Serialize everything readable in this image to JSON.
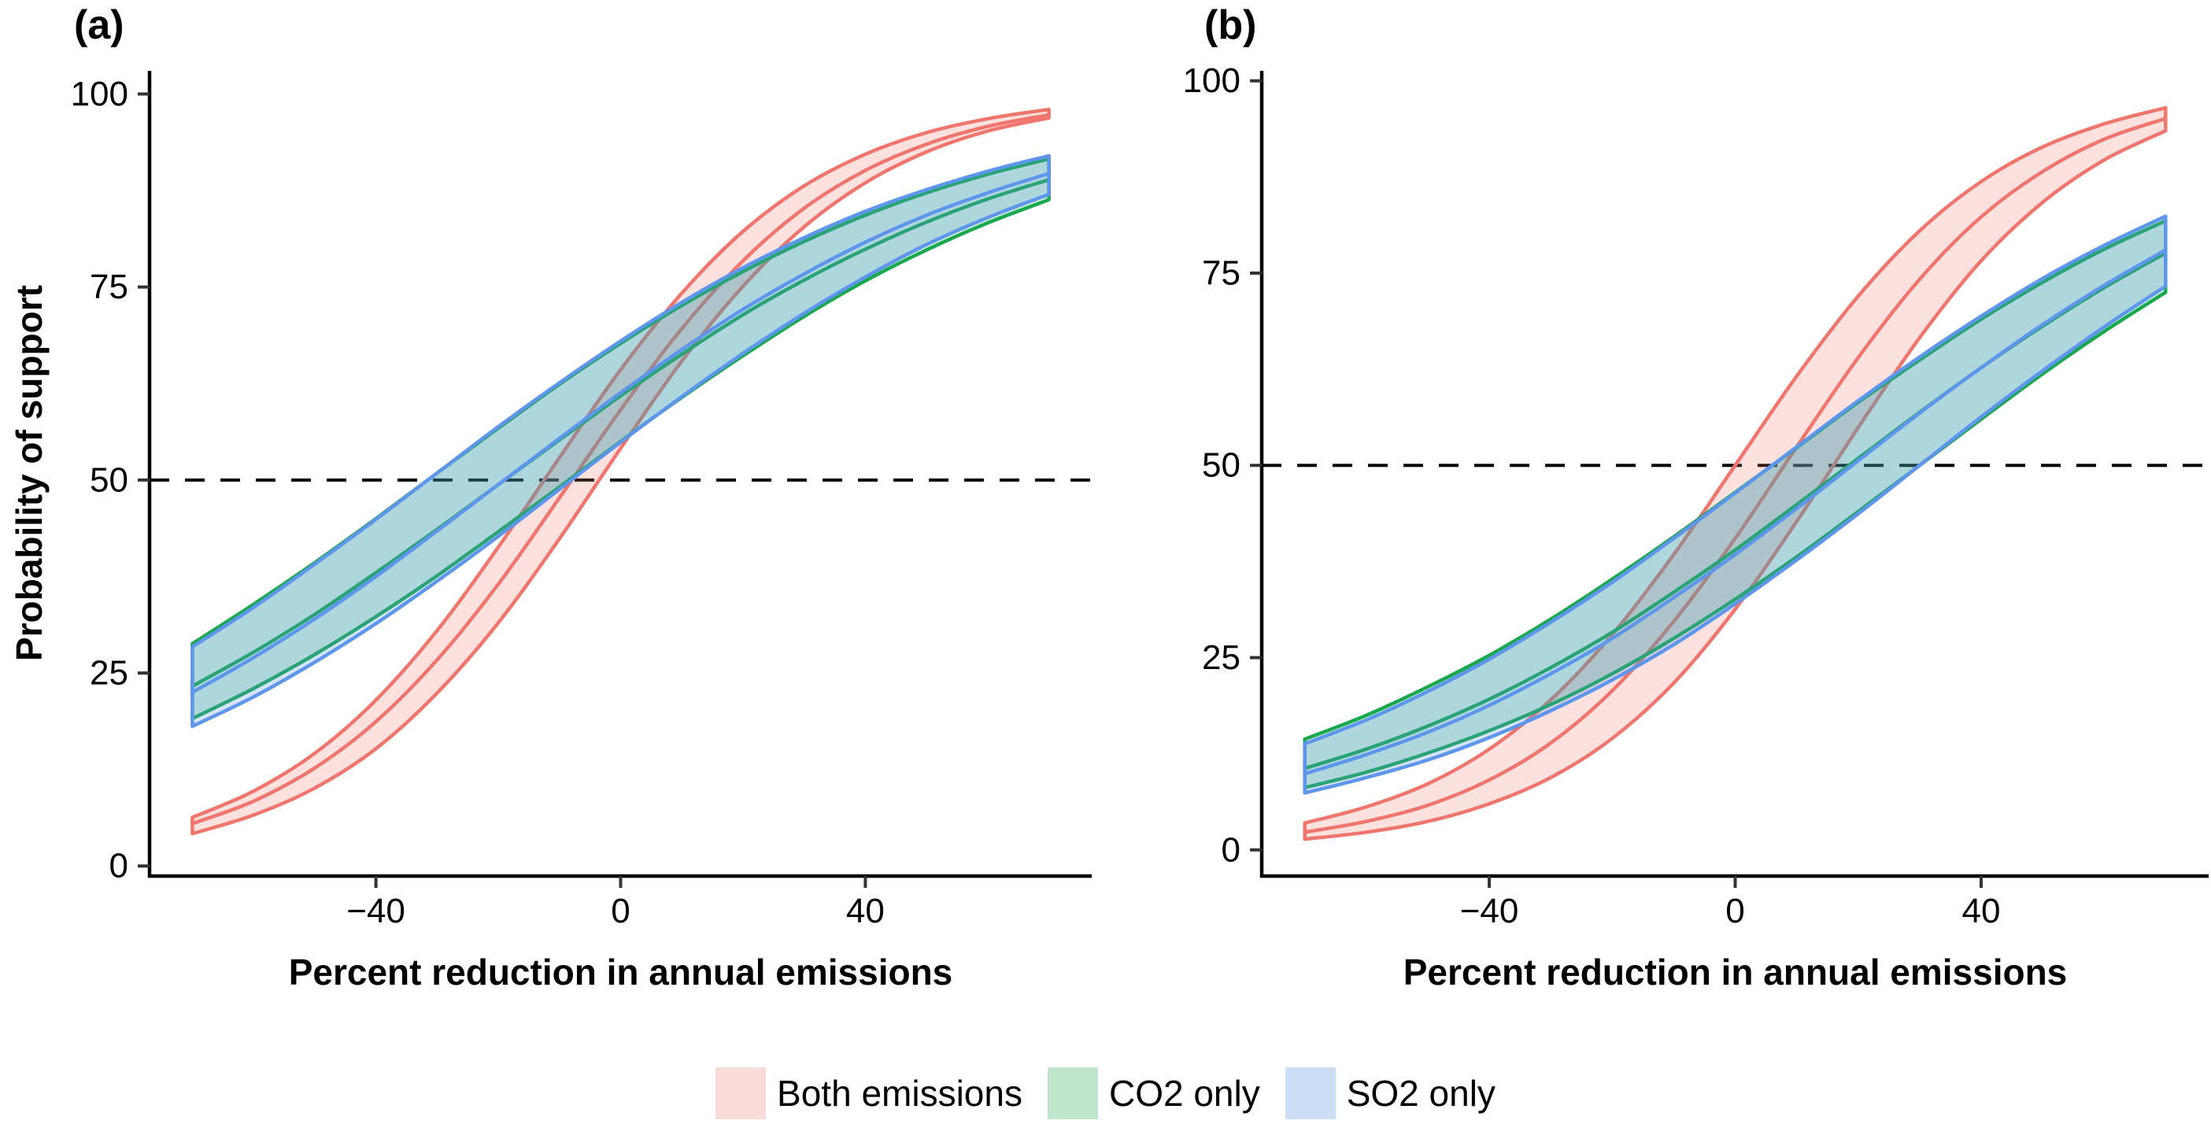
{
  "figure": {
    "ylabel": "Probability of support",
    "legend": [
      {
        "label": "Both emissions",
        "fill": "#F8DBD8"
      },
      {
        "label": "CO2 only",
        "fill": "#C1E6CE"
      },
      {
        "label": "SO2 only",
        "fill": "#CCDDF6"
      }
    ]
  },
  "chart_data": [
    {
      "type": "area",
      "label": "(a)",
      "xlabel": "Percent reduction in annual emissions",
      "ylabel": "Probability of support",
      "xlim": [
        -77,
        77
      ],
      "ylim": [
        -1.3,
        103.0
      ],
      "grid": "off",
      "legend_position": "bottom",
      "reference_line_y": 50,
      "reference_line_style": "dashed",
      "x_ticks": [
        {
          "v": -40,
          "label": "−40"
        },
        {
          "v": 0,
          "label": "0"
        },
        {
          "v": 40,
          "label": "40"
        }
      ],
      "y_ticks": [
        {
          "v": 0,
          "label": "0"
        },
        {
          "v": 25,
          "label": "25"
        },
        {
          "v": 50,
          "label": "50"
        },
        {
          "v": 75,
          "label": "75"
        },
        {
          "v": 100,
          "label": "100"
        }
      ],
      "x": [
        -70,
        -60,
        -50,
        -40,
        -30,
        -20,
        -10,
        0,
        10,
        20,
        30,
        40,
        50,
        60,
        70
      ],
      "series": [
        {
          "name": "Both emissions",
          "color": "#F0756C",
          "fill": "rgba(240,117,108,0.22)",
          "mid": [
            5.5,
            8.4,
            12.7,
            18.7,
            26.7,
            36.5,
            47.7,
            59.1,
            69.6,
            78.4,
            85.2,
            90.1,
            93.5,
            95.8,
            97.3
          ],
          "upper": [
            6.3,
            9.7,
            14.6,
            21.5,
            30.5,
            41.3,
            52.9,
            64.3,
            74.2,
            82.2,
            88.1,
            92.2,
            95.0,
            96.8,
            98.0
          ],
          "lower": [
            4.2,
            6.6,
            10.1,
            15.2,
            22.4,
            31.5,
            42.4,
            54.1,
            65.4,
            75.1,
            82.8,
            88.5,
            92.5,
            95.2,
            96.9
          ]
        },
        {
          "name": "CO2 only",
          "color": "#19A84D",
          "fill": "rgba(25,168,77,0.22)",
          "mid": [
            23.3,
            27.7,
            32.6,
            38.0,
            43.6,
            49.4,
            55.2,
            60.9,
            66.3,
            71.4,
            75.9,
            79.9,
            83.4,
            86.4,
            88.9
          ],
          "upper": [
            28.8,
            33.9,
            39.3,
            45.0,
            50.9,
            56.7,
            62.4,
            67.7,
            72.6,
            77.0,
            80.9,
            84.3,
            87.2,
            89.6,
            91.6
          ],
          "lower": [
            19.1,
            23.0,
            27.4,
            32.3,
            37.6,
            43.3,
            49.1,
            55.0,
            60.7,
            66.1,
            71.2,
            75.8,
            79.8,
            83.3,
            86.3
          ]
        },
        {
          "name": "SO2 only",
          "color": "#5E96EC",
          "fill": "rgba(94,150,236,0.26)",
          "mid": [
            22.5,
            27.0,
            32.0,
            37.5,
            43.4,
            49.4,
            55.4,
            61.3,
            66.9,
            72.1,
            76.7,
            80.8,
            84.3,
            87.2,
            89.7
          ],
          "upper": [
            28.4,
            33.5,
            39.1,
            44.9,
            50.9,
            56.9,
            62.6,
            68.0,
            73.0,
            77.5,
            81.4,
            84.8,
            87.6,
            90.0,
            92.0
          ],
          "lower": [
            18.1,
            21.9,
            26.4,
            31.4,
            36.9,
            42.7,
            48.8,
            54.9,
            60.8,
            66.4,
            71.6,
            76.3,
            80.5,
            84.0,
            87.0
          ]
        }
      ]
    },
    {
      "type": "area",
      "label": "(b)",
      "xlabel": "Percent reduction in annual emissions",
      "ylabel": "Probability of support",
      "xlim": [
        -77,
        77
      ],
      "ylim": [
        -3.4,
        101.3
      ],
      "grid": "off",
      "legend_position": "bottom",
      "reference_line_y": 50,
      "reference_line_style": "dashed",
      "x_ticks": [
        {
          "v": -40,
          "label": "−40"
        },
        {
          "v": 0,
          "label": "0"
        },
        {
          "v": 40,
          "label": "40"
        }
      ],
      "y_ticks": [
        {
          "v": 0,
          "label": "0"
        },
        {
          "v": 25,
          "label": "25"
        },
        {
          "v": 50,
          "label": "50"
        },
        {
          "v": 75,
          "label": "75"
        },
        {
          "v": 100,
          "label": "100"
        }
      ],
      "x": [
        -70,
        -60,
        -50,
        -40,
        -30,
        -20,
        -10,
        0,
        10,
        20,
        30,
        40,
        50,
        60,
        70
      ],
      "series": [
        {
          "name": "Both emissions",
          "color": "#F0756C",
          "fill": "rgba(240,117,108,0.22)",
          "mid": [
            2.3,
            3.7,
            5.8,
            9.1,
            13.9,
            20.7,
            29.7,
            40.5,
            52.4,
            64.0,
            74.2,
            82.3,
            88.2,
            92.4,
            95.1
          ],
          "upper": [
            3.5,
            5.6,
            8.6,
            13.1,
            19.5,
            28.0,
            38.4,
            50.0,
            61.6,
            72.0,
            80.5,
            86.9,
            91.4,
            94.4,
            96.5
          ],
          "lower": [
            1.4,
            2.3,
            3.7,
            6.0,
            9.4,
            14.5,
            21.7,
            31.3,
            42.7,
            54.9,
            66.6,
            76.6,
            84.2,
            89.7,
            93.5
          ]
        },
        {
          "name": "CO2 only",
          "color": "#19A84D",
          "fill": "rgba(25,168,77,0.22)",
          "mid": [
            10.6,
            13.1,
            16.1,
            19.6,
            23.7,
            28.3,
            33.5,
            39.0,
            44.9,
            50.9,
            56.9,
            62.7,
            68.1,
            73.1,
            77.6
          ],
          "upper": [
            14.4,
            17.5,
            21.2,
            25.3,
            30.0,
            35.2,
            40.7,
            46.5,
            52.3,
            58.2,
            63.7,
            69.0,
            73.8,
            78.1,
            81.8
          ],
          "lower": [
            8.1,
            10.1,
            12.6,
            15.5,
            18.9,
            22.9,
            27.5,
            32.6,
            38.1,
            44.0,
            50.0,
            56.0,
            61.9,
            67.4,
            72.5
          ]
        },
        {
          "name": "SO2 only",
          "color": "#5E96EC",
          "fill": "rgba(94,150,236,0.26)",
          "mid": [
            9.9,
            12.4,
            15.3,
            18.8,
            22.9,
            27.5,
            32.8,
            38.4,
            44.4,
            50.6,
            56.8,
            62.7,
            68.3,
            73.4,
            78.0
          ],
          "upper": [
            13.8,
            16.9,
            20.6,
            24.8,
            29.6,
            34.8,
            40.5,
            46.4,
            52.4,
            58.4,
            64.1,
            69.4,
            74.3,
            78.6,
            82.4
          ],
          "lower": [
            7.4,
            9.4,
            11.7,
            14.6,
            18.1,
            22.1,
            26.7,
            32.0,
            37.7,
            43.7,
            50.0,
            56.3,
            62.3,
            68.0,
            73.3
          ]
        }
      ]
    }
  ]
}
